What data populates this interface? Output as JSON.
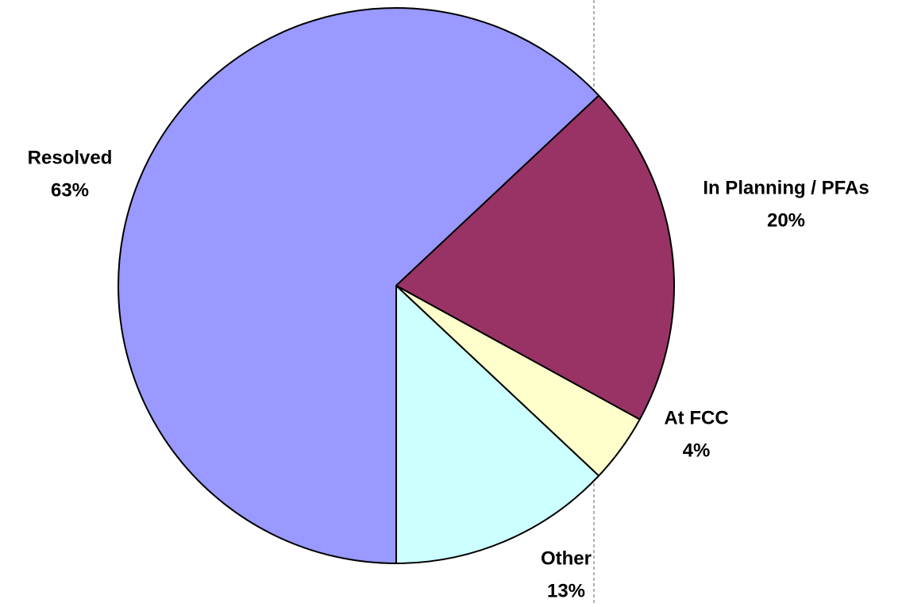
{
  "chart_data": {
    "type": "pie",
    "categories": [
      "Resolved",
      "In Planning / PFAs",
      "At FCC",
      "Other"
    ],
    "values": [
      63,
      20,
      4,
      13
    ],
    "value_labels": [
      "63%",
      "20%",
      "4%",
      "13%"
    ],
    "colors": [
      "#9999ff",
      "#993366",
      "#ffffcc",
      "#ccffff"
    ]
  }
}
